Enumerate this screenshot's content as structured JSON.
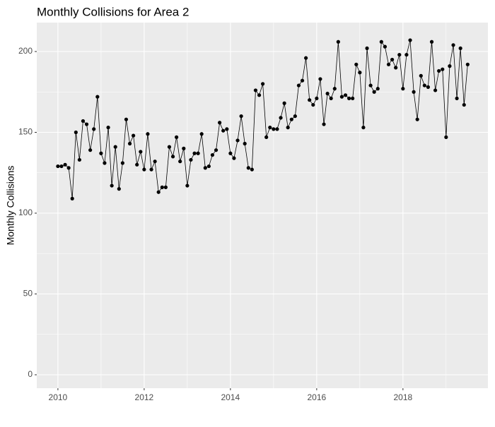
{
  "chart_data": {
    "type": "line",
    "title": "Monthly Collisions for Area 2",
    "ylabel": "Monthly Collisions",
    "x": [
      2010,
      2010.083,
      2010.167,
      2010.25,
      2010.333,
      2010.417,
      2010.5,
      2010.583,
      2010.667,
      2010.75,
      2010.833,
      2010.917,
      2011,
      2011.083,
      2011.167,
      2011.25,
      2011.333,
      2011.417,
      2011.5,
      2011.583,
      2011.667,
      2011.75,
      2011.833,
      2011.917,
      2012,
      2012.083,
      2012.167,
      2012.25,
      2012.333,
      2012.417,
      2012.5,
      2012.583,
      2012.667,
      2012.75,
      2012.833,
      2012.917,
      2013,
      2013.083,
      2013.167,
      2013.25,
      2013.333,
      2013.417,
      2013.5,
      2013.583,
      2013.667,
      2013.75,
      2013.833,
      2013.917,
      2014,
      2014.083,
      2014.167,
      2014.25,
      2014.333,
      2014.417,
      2014.5,
      2014.583,
      2014.667,
      2014.75,
      2014.833,
      2014.917,
      2015,
      2015.083,
      2015.167,
      2015.25,
      2015.333,
      2015.417,
      2015.5,
      2015.583,
      2015.667,
      2015.75,
      2015.833,
      2015.917,
      2016,
      2016.083,
      2016.167,
      2016.25,
      2016.333,
      2016.417,
      2016.5,
      2016.583,
      2016.667,
      2016.75,
      2016.833,
      2016.917,
      2017,
      2017.083,
      2017.167,
      2017.25,
      2017.333,
      2017.417,
      2017.5,
      2017.583,
      2017.667,
      2017.75,
      2017.833,
      2017.917,
      2018,
      2018.083,
      2018.167,
      2018.25,
      2018.333,
      2018.417,
      2018.5,
      2018.583,
      2018.667,
      2018.75,
      2018.833,
      2018.917,
      2019,
      2019.083,
      2019.167,
      2019.25,
      2019.333,
      2019.417,
      2019.5
    ],
    "series": [
      {
        "color": "#000000",
        "values": [
          129,
          129,
          130,
          128,
          109,
          150,
          133,
          157,
          155,
          139,
          152,
          172,
          137,
          131,
          153,
          117,
          141,
          115,
          131,
          158,
          143,
          148,
          130,
          138,
          127,
          149,
          127,
          132,
          113,
          116,
          116,
          141,
          135,
          147,
          132,
          140,
          117,
          133,
          137,
          137,
          149,
          128,
          129,
          136,
          139,
          156,
          151,
          152,
          137,
          134,
          145,
          160,
          143,
          128,
          127,
          176,
          173,
          180,
          147,
          153,
          152,
          152,
          159,
          168,
          153,
          158,
          160,
          179,
          182,
          196,
          170,
          167,
          171,
          183,
          155,
          174,
          171,
          177,
          206,
          172,
          173,
          171,
          171,
          192,
          187,
          153,
          202,
          179,
          175,
          177,
          206,
          203,
          192,
          195,
          190,
          198,
          177,
          198,
          207,
          175,
          158,
          185,
          179,
          178,
          206,
          176,
          188,
          189,
          147,
          191,
          204,
          171,
          202,
          167,
          192
        ]
      }
    ],
    "xlim": [
      2009.51,
      2019.97
    ],
    "xticks": [
      2010,
      2012,
      2014,
      2016,
      2018
    ],
    "ylim": [
      -8.3,
      217.9
    ],
    "yticks": [
      0,
      50,
      100,
      150,
      200
    ],
    "grid": true,
    "minor_grid": true,
    "background": "#ebebeb"
  }
}
